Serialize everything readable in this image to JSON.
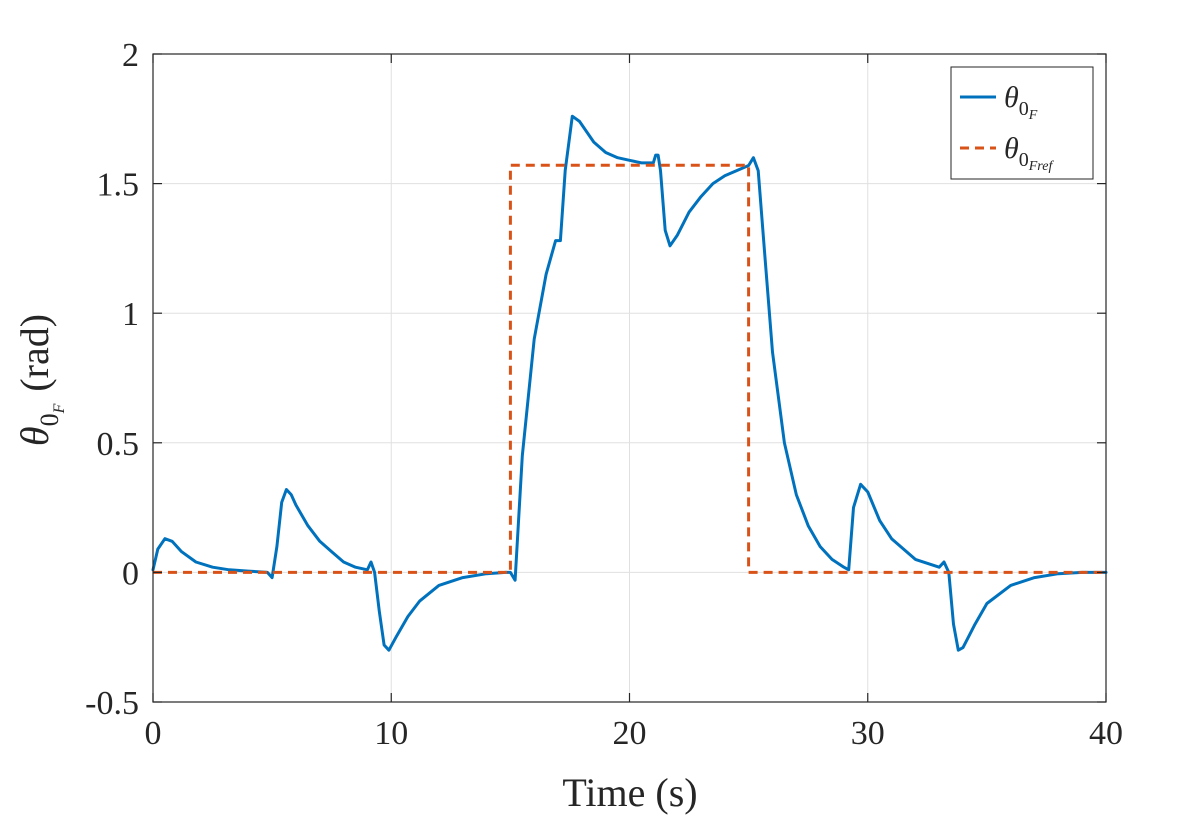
{
  "chart_data": {
    "type": "line",
    "xlabel": "Time (s)",
    "ylabel_symbol": "θ",
    "ylabel_sub": "0",
    "ylabel_subsub": "F",
    "ylabel_unit": "(rad)",
    "xlim": [
      0,
      40
    ],
    "ylim": [
      -0.5,
      2
    ],
    "xticks": [
      0,
      10,
      20,
      30,
      40
    ],
    "xtick_labels": [
      "0",
      "10",
      "20",
      "30",
      "40"
    ],
    "yticks": [
      -0.5,
      0,
      0.5,
      1,
      1.5,
      2
    ],
    "ytick_labels": [
      "-0.5",
      "0",
      "0.5",
      "1",
      "1.5",
      "2"
    ],
    "grid": true,
    "legend_position": "top-right",
    "series": [
      {
        "name": "θ0F",
        "legend_symbol": "θ",
        "legend_sub": "0",
        "legend_subsub": "F",
        "color": "#0072BD",
        "style": "solid",
        "x": [
          0,
          0.2,
          0.5,
          0.8,
          1.2,
          1.8,
          2.5,
          3.2,
          4.0,
          4.8,
          5.0,
          5.2,
          5.4,
          5.6,
          5.8,
          6.0,
          6.5,
          7.0,
          7.5,
          8.0,
          8.5,
          9.0,
          9.15,
          9.3,
          9.5,
          9.7,
          9.9,
          10.2,
          10.7,
          11.2,
          12.0,
          13.0,
          14.0,
          14.8,
          15.0,
          15.2,
          15.5,
          16.0,
          16.5,
          16.9,
          17.1,
          17.3,
          17.6,
          17.9,
          18.5,
          19.0,
          19.5,
          20.0,
          20.5,
          21.0,
          21.1,
          21.2,
          21.3,
          21.5,
          21.7,
          22.0,
          22.5,
          23.0,
          23.5,
          24.0,
          24.5,
          25.0,
          25.2,
          25.4,
          25.7,
          26.0,
          26.5,
          27.0,
          27.5,
          28.0,
          28.5,
          29.0,
          29.2,
          29.4,
          29.7,
          30.0,
          30.5,
          31.0,
          32.0,
          33.0,
          33.2,
          33.4,
          33.6,
          33.8,
          34.0,
          34.5,
          35.0,
          36.0,
          37.0,
          38.0,
          39.0,
          40.0
        ],
        "y": [
          0.01,
          0.09,
          0.13,
          0.12,
          0.08,
          0.04,
          0.02,
          0.01,
          0.005,
          0.0,
          -0.02,
          0.1,
          0.27,
          0.32,
          0.3,
          0.26,
          0.18,
          0.12,
          0.08,
          0.04,
          0.02,
          0.01,
          0.04,
          0.0,
          -0.15,
          -0.28,
          -0.3,
          -0.25,
          -0.17,
          -0.11,
          -0.05,
          -0.02,
          -0.005,
          0.0,
          0.0,
          -0.03,
          0.45,
          0.9,
          1.15,
          1.28,
          1.28,
          1.55,
          1.76,
          1.74,
          1.66,
          1.62,
          1.6,
          1.59,
          1.58,
          1.58,
          1.61,
          1.61,
          1.55,
          1.32,
          1.26,
          1.3,
          1.39,
          1.45,
          1.5,
          1.53,
          1.55,
          1.57,
          1.6,
          1.55,
          1.2,
          0.85,
          0.5,
          0.3,
          0.18,
          0.1,
          0.05,
          0.02,
          0.01,
          0.25,
          0.34,
          0.31,
          0.2,
          0.13,
          0.05,
          0.02,
          0.04,
          0.0,
          -0.2,
          -0.3,
          -0.29,
          -0.2,
          -0.12,
          -0.05,
          -0.02,
          -0.005,
          0.0,
          0.0
        ]
      },
      {
        "name": "θ0Fref",
        "legend_symbol": "θ",
        "legend_sub": "0",
        "legend_subsub": "Fref",
        "color": "#D95319",
        "style": "dashed",
        "x": [
          0,
          15,
          15,
          25,
          25,
          40
        ],
        "y": [
          0,
          0,
          1.5708,
          1.5708,
          0,
          0
        ]
      }
    ]
  }
}
